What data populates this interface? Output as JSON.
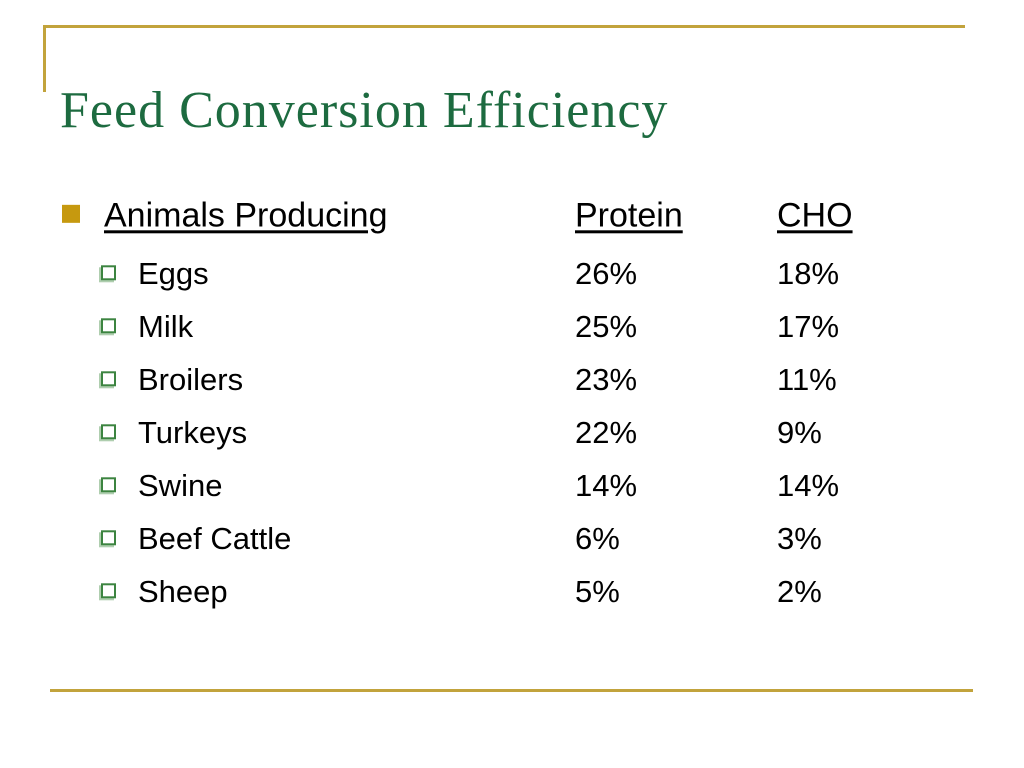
{
  "slide": {
    "title": "Feed Conversion Efficiency",
    "colors": {
      "background": "#FFFFFF",
      "text": "#000000",
      "title_green": "#1D6B40",
      "rule_gold": "#C2A33C",
      "bullet_gold": "#C6990F",
      "bullet_green": "#3C8440"
    }
  },
  "table": {
    "header": {
      "animal": "Animals Producing",
      "protein": "Protein",
      "cho": "CHO"
    },
    "rows": [
      {
        "animal": "Eggs",
        "protein": "26%",
        "cho": "18%"
      },
      {
        "animal": "Milk",
        "protein": "25%",
        "cho": "17%"
      },
      {
        "animal": "Broilers",
        "protein": "23%",
        "cho": "11%"
      },
      {
        "animal": "Turkeys",
        "protein": "22%",
        "cho": "9%"
      },
      {
        "animal": "Swine",
        "protein": "14%",
        "cho": "14%"
      },
      {
        "animal": "Beef Cattle",
        "protein": "6%",
        "cho": "3%"
      },
      {
        "animal": "Sheep",
        "protein": "5%",
        "cho": "2%"
      }
    ]
  },
  "icons": {
    "main_bullet": "filled-gold-square",
    "sub_bullet": "shadowed-green-outline-square"
  }
}
